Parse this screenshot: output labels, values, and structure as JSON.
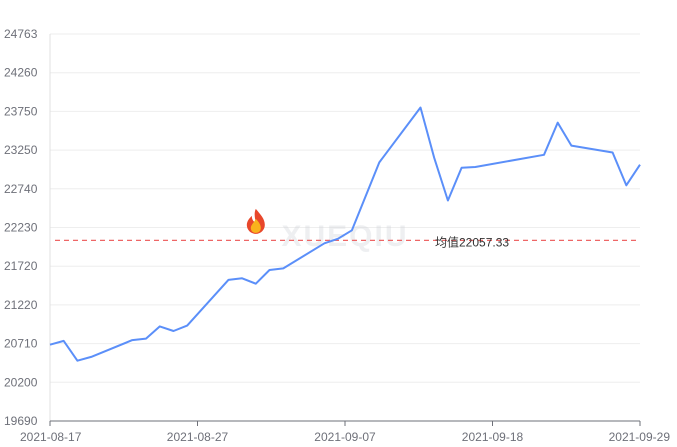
{
  "chart_data": {
    "type": "line",
    "title": "",
    "xlabel": "",
    "ylabel": "",
    "ylim": [
      19690,
      24763
    ],
    "y_ticks": [
      "24763",
      "24260",
      "23750",
      "23250",
      "22740",
      "22230",
      "21720",
      "21220",
      "20710",
      "20200",
      "19690"
    ],
    "x_ticks": [
      "2021-08-17",
      "2021-08-27",
      "2021-09-07",
      "2021-09-18",
      "2021-09-29"
    ],
    "xlim": [
      "2021-08-17",
      "2021-09-29"
    ],
    "grid": true,
    "series": [
      {
        "color": "#5b8ff9",
        "points": [
          {
            "x": "2021-08-17",
            "y": 20690
          },
          {
            "x": "2021-08-18",
            "y": 20740
          },
          {
            "x": "2021-08-19",
            "y": 20480
          },
          {
            "x": "2021-08-20",
            "y": 20530
          },
          {
            "x": "2021-08-23",
            "y": 20750
          },
          {
            "x": "2021-08-24",
            "y": 20770
          },
          {
            "x": "2021-08-25",
            "y": 20930
          },
          {
            "x": "2021-08-26",
            "y": 20870
          },
          {
            "x": "2021-08-27",
            "y": 20940
          },
          {
            "x": "2021-08-30",
            "y": 21540
          },
          {
            "x": "2021-08-31",
            "y": 21560
          },
          {
            "x": "2021-09-01",
            "y": 21490
          },
          {
            "x": "2021-09-02",
            "y": 21670
          },
          {
            "x": "2021-09-03",
            "y": 21690
          },
          {
            "x": "2021-09-06",
            "y": 22020
          },
          {
            "x": "2021-09-07",
            "y": 22080
          },
          {
            "x": "2021-09-08",
            "y": 22190
          },
          {
            "x": "2021-09-10",
            "y": 23080
          },
          {
            "x": "2021-09-13",
            "y": 23800
          },
          {
            "x": "2021-09-14",
            "y": 23140
          },
          {
            "x": "2021-09-15",
            "y": 22580
          },
          {
            "x": "2021-09-16",
            "y": 23010
          },
          {
            "x": "2021-09-17",
            "y": 23020
          },
          {
            "x": "2021-09-22",
            "y": 23180
          },
          {
            "x": "2021-09-23",
            "y": 23600
          },
          {
            "x": "2021-09-24",
            "y": 23300
          },
          {
            "x": "2021-09-27",
            "y": 23210
          },
          {
            "x": "2021-09-28",
            "y": 22780
          },
          {
            "x": "2021-09-29",
            "y": 23050
          }
        ]
      }
    ],
    "average": {
      "label": "均值22057.33",
      "value": 22057.33,
      "color": "#ee6666"
    },
    "annotations": [
      {
        "icon": "fire-icon",
        "x": "2021-09-01",
        "y": 22300
      }
    ],
    "watermark": "XUEQIU",
    "axis_color": "#6e7079",
    "grid_color": "#eeeeee"
  }
}
